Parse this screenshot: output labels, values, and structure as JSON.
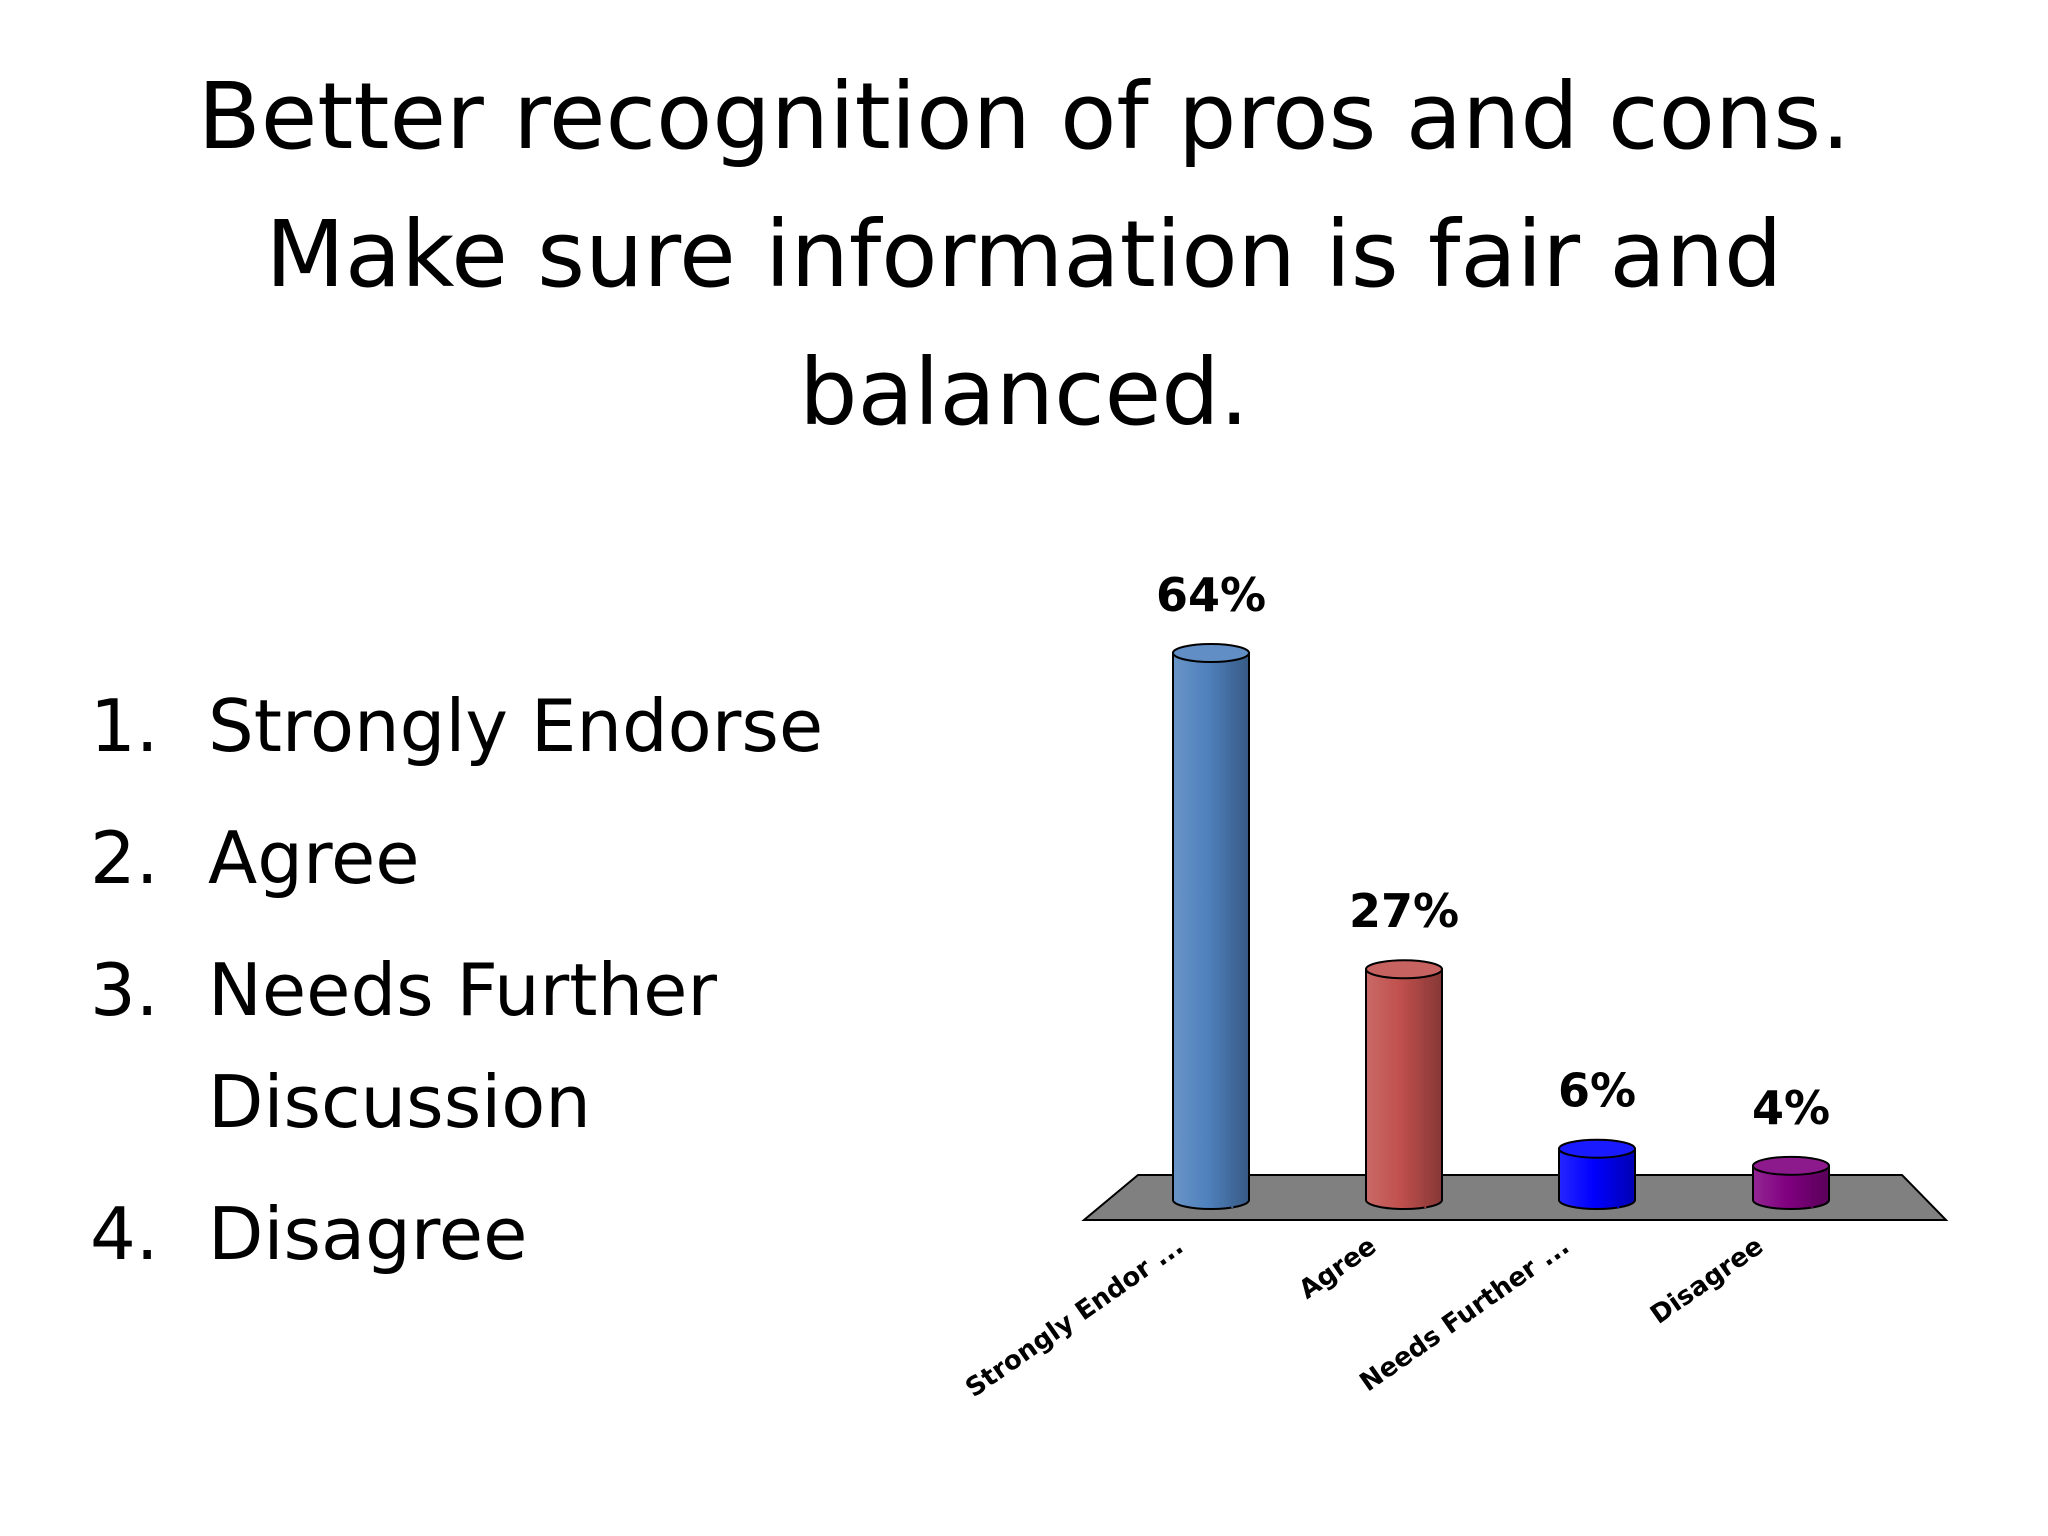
{
  "title": {
    "lines": [
      "Better recognition of pros and cons.",
      "Make sure information is fair and",
      "balanced."
    ]
  },
  "options": [
    {
      "number": "1.",
      "text": "Strongly Endorse"
    },
    {
      "number": "2.",
      "text": "Agree"
    },
    {
      "number": "3.",
      "text": "Needs Further Discussion"
    },
    {
      "number": "4.",
      "text": "Disagree"
    }
  ],
  "chart_data": {
    "type": "bar",
    "style": "3d-cylinder",
    "categories": [
      "Strongly Endor ...",
      "Agree",
      "Needs Further ...",
      "Disagree"
    ],
    "values": [
      64,
      27,
      6,
      4
    ],
    "value_labels": [
      "64%",
      "27%",
      "6%",
      "4%"
    ],
    "colors": [
      "#4f81bd",
      "#c0504d",
      "#0000ff",
      "#800080"
    ],
    "floor_color": "#808080",
    "ylim": [
      0,
      64
    ],
    "grid": false,
    "legend": "none"
  }
}
